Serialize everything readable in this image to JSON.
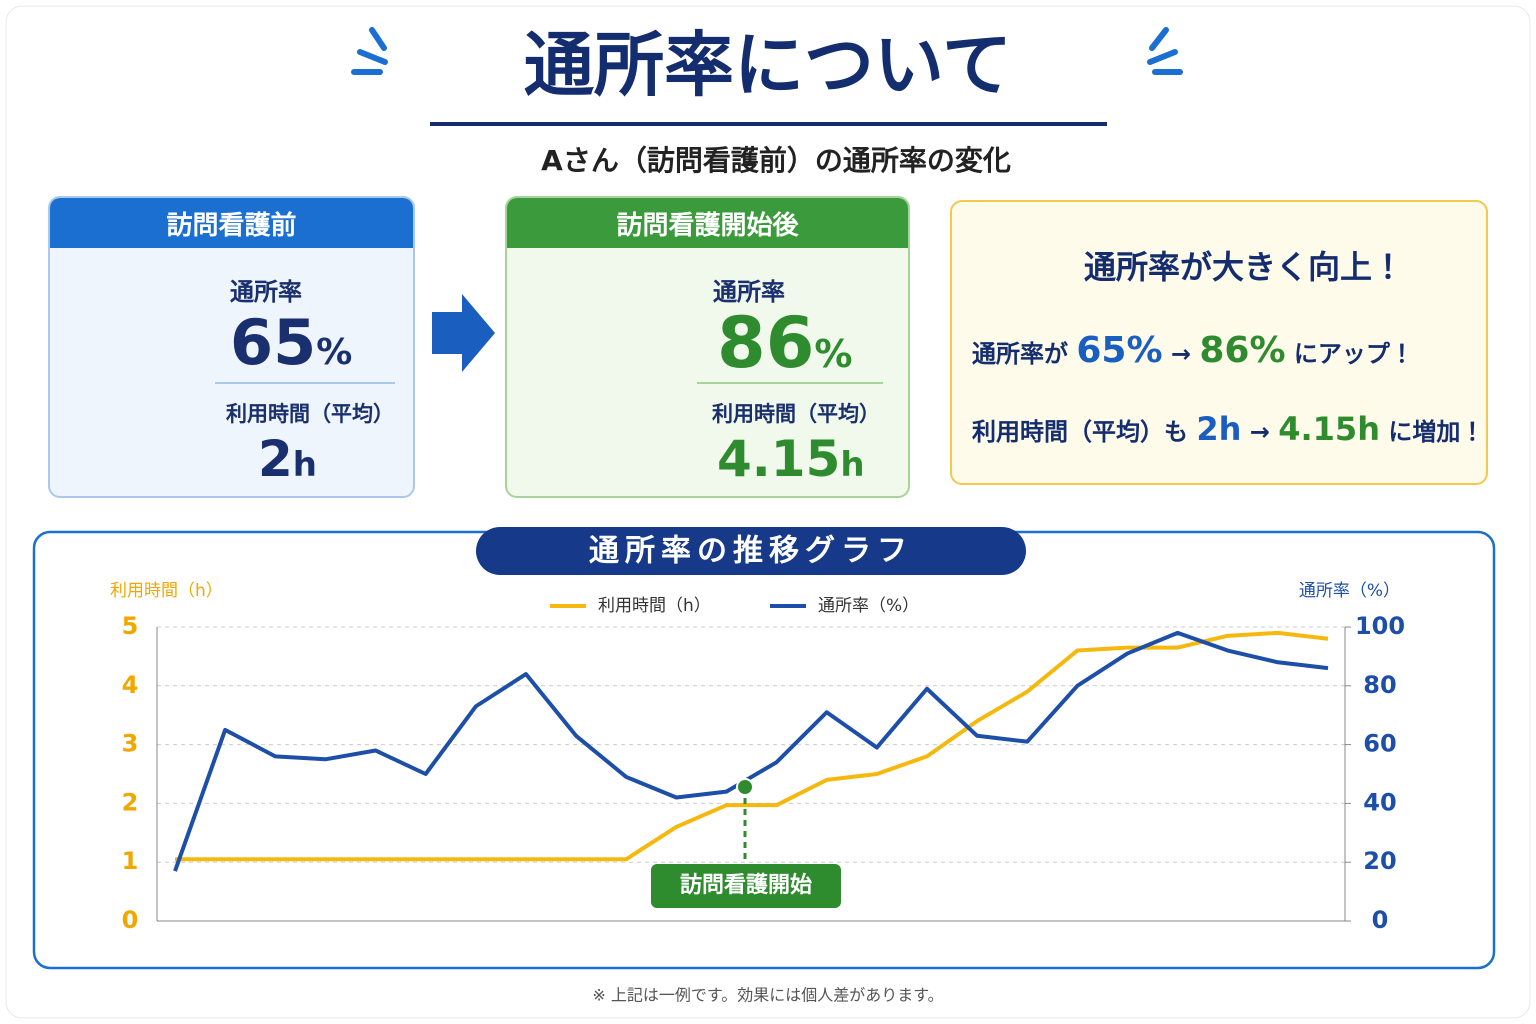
{
  "header": {
    "title": "通所率について",
    "subtitle": "Aさん（訪問看護前）の通所率の変化"
  },
  "before": {
    "header": "訪問看護前",
    "rate_label": "通所率",
    "rate": "65",
    "rate_unit": "%",
    "time_label": "利用時間（平均）",
    "time": "2",
    "time_unit": "h"
  },
  "after": {
    "header": "訪問看護開始後",
    "rate_label": "通所率",
    "rate": "86",
    "rate_unit": "%",
    "time_label": "利用時間（平均）",
    "time": "4.15",
    "time_unit": "h"
  },
  "highlight": {
    "title": "通所率が大きく向上！",
    "line1": [
      "通所率が",
      "65%",
      "→",
      "86%",
      "にアップ！"
    ],
    "line2": [
      "利用時間（平均）も",
      "2h",
      "→",
      "4.15h",
      "に増加！"
    ]
  },
  "chart_data": {
    "type": "line",
    "title": "通所率の推移グラフ",
    "y_label": "利用時間（h）",
    "y2_label": "通所率（%）",
    "categories": [
      null,
      null,
      null,
      null,
      null,
      null,
      null,
      null,
      null,
      null,
      null,
      null,
      null,
      null,
      null,
      null,
      null,
      null,
      null,
      null,
      null,
      null,
      null,
      null
    ],
    "series": [
      {
        "name": "利用時間（h）",
        "color": "#f5b80f",
        "values": [
          1.05,
          1.05,
          1.05,
          1.05,
          1.05,
          1.05,
          1.05,
          1.05,
          1.05,
          1.05,
          1.6,
          1.97,
          1.97,
          2.4,
          2.5,
          2.8,
          3.4,
          3.9,
          4.6,
          4.65,
          4.65,
          4.85,
          4.9,
          4.8
        ]
      },
      {
        "name": "通所率（%）",
        "color": "#1d4fa8",
        "axis": "y2",
        "values": [
          17,
          65,
          56,
          55,
          58,
          50,
          73,
          84,
          63,
          49,
          42,
          44,
          54,
          71,
          59,
          79,
          63,
          61,
          80,
          91,
          98,
          92,
          88,
          86
        ]
      }
    ],
    "ylim": [
      0,
      5
    ],
    "yticks": [
      0,
      1,
      2,
      3,
      4,
      5
    ],
    "y2lim": [
      0,
      100
    ],
    "y2ticks": [
      0,
      20,
      40,
      60,
      80,
      100
    ],
    "grid": true,
    "annotation": "訪問看護開始"
  },
  "footnote": "※ 上記は一例です。効果には個人差があります。"
}
